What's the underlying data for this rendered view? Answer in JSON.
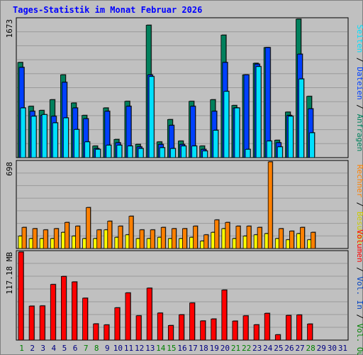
{
  "title": "Tages-Statistik im Monat Februar 2026",
  "colors": {
    "anfragen": "#00805c",
    "dateien": "#0040ff",
    "seiten": "#00e0ff",
    "besuche": "#ffff00",
    "rechner": "#ff8000",
    "vol_out": "#00c000",
    "vol_in": "#0000c0",
    "volumen": "#ff0000",
    "background": "#c0c0c0",
    "weekday_label": "#000080",
    "weekend_label": "#008000"
  },
  "chart_data": [
    {
      "type": "bar",
      "panel": "requests",
      "y_axis_label": "1673",
      "ylim": [
        0,
        1673
      ],
      "x": [
        1,
        2,
        3,
        4,
        5,
        6,
        7,
        8,
        9,
        10,
        11,
        12,
        13,
        14,
        15,
        16,
        17,
        18,
        19,
        20,
        21,
        22,
        23,
        24,
        25,
        26,
        27,
        28
      ],
      "series": [
        {
          "name": "Anfragen",
          "color": "#00805c",
          "values": [
            1150,
            620,
            570,
            700,
            1000,
            660,
            510,
            140,
            600,
            220,
            680,
            160,
            1600,
            190,
            460,
            200,
            680,
            140,
            700,
            1480,
            630,
            1000,
            1140,
            1330,
            210,
            550,
            1673,
            740
          ]
        },
        {
          "name": "Dateien",
          "color": "#0040ff",
          "values": [
            1090,
            560,
            510,
            500,
            910,
            600,
            470,
            110,
            560,
            180,
            620,
            130,
            1000,
            160,
            390,
            160,
            620,
            100,
            560,
            1150,
            600,
            1000,
            1130,
            1330,
            180,
            510,
            1250,
            590
          ]
        },
        {
          "name": "Seiten",
          "color": "#00e0ff",
          "values": [
            600,
            500,
            520,
            420,
            480,
            340,
            190,
            100,
            150,
            150,
            140,
            110,
            980,
            120,
            110,
            140,
            140,
            80,
            330,
            800,
            600,
            100,
            1100,
            200,
            130,
            500,
            950,
            300
          ]
        }
      ],
      "x_labels": [
        "1",
        "2",
        "3",
        "4",
        "5",
        "6",
        "7",
        "8",
        "9",
        "10",
        "11",
        "12",
        "13",
        "14",
        "15",
        "16",
        "17",
        "18",
        "19",
        "20",
        "21",
        "22",
        "23",
        "24",
        "25",
        "26",
        "27",
        "28",
        "29",
        "30",
        "31"
      ],
      "weekend_days": [
        1,
        7,
        8,
        14,
        15,
        21,
        22,
        28
      ]
    },
    {
      "type": "bar",
      "panel": "visits",
      "y_axis_label": "698",
      "ylim": [
        0,
        698
      ],
      "series": [
        {
          "name": "Besuche",
          "color": "#ffff00",
          "values": [
            100,
            80,
            80,
            80,
            130,
            100,
            80,
            80,
            150,
            90,
            110,
            80,
            80,
            90,
            80,
            80,
            90,
            60,
            130,
            160,
            80,
            100,
            110,
            120,
            80,
            70,
            120,
            70
          ]
        },
        {
          "name": "Rechner",
          "color": "#ff8000",
          "values": [
            170,
            160,
            150,
            160,
            210,
            180,
            330,
            150,
            220,
            180,
            260,
            150,
            150,
            170,
            160,
            160,
            180,
            110,
            230,
            210,
            180,
            180,
            170,
            698,
            160,
            140,
            170,
            130
          ]
        }
      ]
    },
    {
      "type": "bar",
      "panel": "volume",
      "y_axis_label": "117.18 MB",
      "ylim": [
        0,
        117.18
      ],
      "series": [
        {
          "name": "Volumen",
          "color": "#ff0000",
          "values": [
            117.18,
            45.2,
            45.5,
            74.0,
            84.7,
            77.4,
            55.8,
            21.6,
            20.2,
            43.0,
            62.8,
            32.4,
            69.1,
            36.0,
            19.4,
            33.7,
            49.4,
            25.5,
            28.1,
            66.6,
            25.3,
            32.3,
            20.4,
            35.6,
            7.1,
            32.8,
            33.4,
            21.4
          ]
        }
      ]
    }
  ],
  "side_labels": {
    "requests": [
      {
        "text": "Seiten",
        "color": "#00e0ff"
      },
      {
        "text": " / ",
        "color": "#000000"
      },
      {
        "text": "Dateien",
        "color": "#0040ff"
      },
      {
        "text": " / ",
        "color": "#000000"
      },
      {
        "text": "Anfragen",
        "color": "#00805c"
      }
    ],
    "visits": [
      {
        "text": "Rechner",
        "color": "#ff8000"
      },
      {
        "text": " / ",
        "color": "#000000"
      },
      {
        "text": "Besuche",
        "color": "#cccc00"
      }
    ],
    "volume": [
      {
        "text": "Volumen",
        "color": "#ff0000"
      },
      {
        "text": " / ",
        "color": "#000000"
      },
      {
        "text": "Vol. In",
        "color": "#0040c0"
      },
      {
        "text": " / ",
        "color": "#000000"
      },
      {
        "text": "Vol. Out",
        "color": "#008000"
      }
    ]
  }
}
